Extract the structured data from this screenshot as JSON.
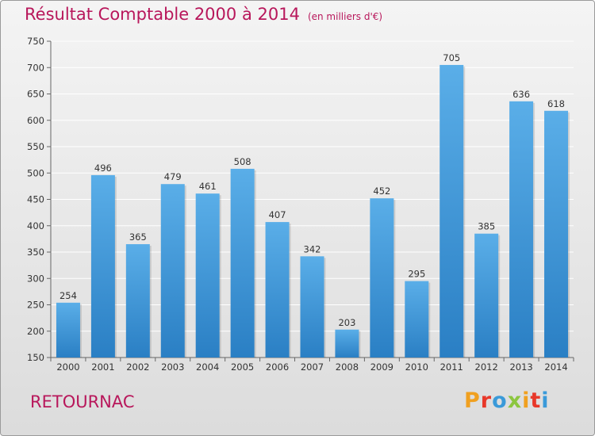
{
  "header": {
    "title": "Résultat Comptable 2000 à 2014",
    "subtitle": "(en milliers d'€)"
  },
  "footer": {
    "commune": "RETOURNAC",
    "brand": "Proxiti",
    "brand_colors": [
      "#f0a020",
      "#e8382a",
      "#3a9ad9",
      "#8cc63f",
      "#f0a020",
      "#e8382a",
      "#3a9ad9"
    ]
  },
  "colors": {
    "title": "#b8175b",
    "bar_top": "#5aaee8",
    "bar_bottom": "#2a7fc4"
  },
  "chart_data": {
    "type": "bar",
    "title": "Résultat Comptable 2000 à 2014",
    "subtitle": "(en milliers d'€)",
    "categories": [
      "2000",
      "2001",
      "2002",
      "2003",
      "2004",
      "2005",
      "2006",
      "2007",
      "2008",
      "2009",
      "2010",
      "2011",
      "2012",
      "2013",
      "2014"
    ],
    "values": [
      254,
      496,
      365,
      479,
      461,
      508,
      407,
      342,
      203,
      452,
      295,
      705,
      385,
      636,
      618
    ],
    "ylim": [
      150,
      750
    ],
    "yticks": [
      150,
      200,
      250,
      300,
      350,
      400,
      450,
      500,
      550,
      600,
      650,
      700,
      750
    ],
    "grid": true,
    "data_labels": true
  }
}
